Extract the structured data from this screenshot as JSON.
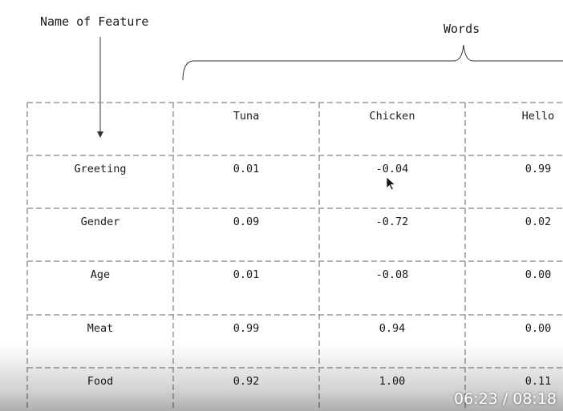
{
  "labels": {
    "feature": "Name of Feature",
    "words": "Words"
  },
  "table": {
    "columns": [
      "Tuna",
      "Chicken",
      "Hello"
    ],
    "rows": [
      {
        "feature": "Greeting",
        "values": [
          "0.01",
          "-0.04",
          "0.99"
        ]
      },
      {
        "feature": "Gender",
        "values": [
          "0.09",
          "-0.72",
          "0.02"
        ]
      },
      {
        "feature": "Age",
        "values": [
          "0.01",
          "-0.08",
          "0.00"
        ]
      },
      {
        "feature": "Meat",
        "values": [
          "0.99",
          "0.94",
          "0.00"
        ]
      },
      {
        "feature": "Food",
        "values": [
          "0.92",
          "1.00",
          "0.11"
        ]
      }
    ]
  },
  "player": {
    "timestamp": "06:23 / 08:18"
  },
  "colors": {
    "ink": "#1a1a1a",
    "grid": "#9a9a9a"
  }
}
